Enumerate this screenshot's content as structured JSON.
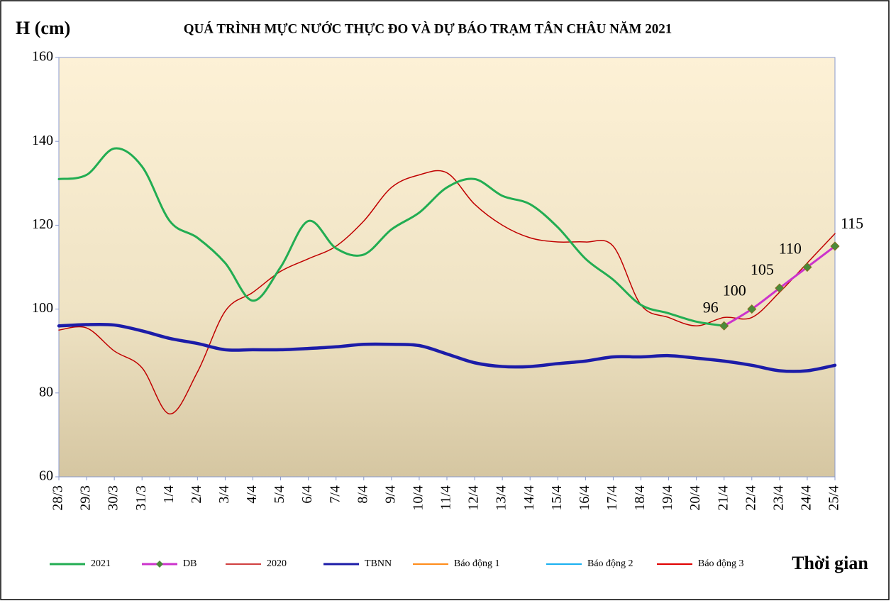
{
  "chart_data": {
    "type": "line",
    "title": "QUÁ TRÌNH MỰC NƯỚC THỰC ĐO VÀ DỰ BÁO TRẠM TÂN CHÂU NĂM 2021",
    "y_label": "H (cm)",
    "x_label": "Thời gian",
    "categories": [
      "28/3",
      "29/3",
      "30/3",
      "31/3",
      "1/4",
      "2/4",
      "3/4",
      "4/4",
      "5/4",
      "6/4",
      "7/4",
      "8/4",
      "9/4",
      "10/4",
      "11/4",
      "12/4",
      "13/4",
      "14/4",
      "15/4",
      "16/4",
      "17/4",
      "18/4",
      "19/4",
      "20/4",
      "21/4",
      "22/4",
      "23/4",
      "24/4",
      "25/4"
    ],
    "ylim": [
      60,
      160
    ],
    "yticks": [
      60,
      80,
      100,
      120,
      140,
      160
    ],
    "legend": "bottom",
    "series": [
      {
        "name": "2021",
        "color": "#22ad52",
        "width": 3,
        "values": [
          131,
          132,
          138.3,
          134,
          121,
          117,
          111,
          102,
          110,
          121,
          114.5,
          113,
          119,
          123,
          129,
          131,
          127,
          125,
          119.5,
          112,
          107,
          101,
          99,
          97,
          96,
          null,
          null,
          null,
          null
        ]
      },
      {
        "name": "DB",
        "color": "#cc33cc",
        "width": 3,
        "marker": "diamond",
        "marker_color": "#4a8a3a",
        "values": [
          null,
          null,
          null,
          null,
          null,
          null,
          null,
          null,
          null,
          null,
          null,
          null,
          null,
          null,
          null,
          null,
          null,
          null,
          null,
          null,
          null,
          null,
          null,
          null,
          96,
          100,
          105,
          110,
          115
        ],
        "value_labels": [
          null,
          null,
          null,
          null,
          null,
          null,
          null,
          null,
          null,
          null,
          null,
          null,
          null,
          null,
          null,
          null,
          null,
          null,
          null,
          null,
          null,
          null,
          null,
          null,
          "96",
          "100",
          "105",
          "110",
          "115"
        ]
      },
      {
        "name": "2020",
        "color": "#c00000",
        "width": 1.5,
        "values": [
          95,
          95.5,
          90,
          86,
          75,
          85,
          99.5,
          104,
          109,
          112,
          115,
          121,
          129,
          132,
          132.5,
          125,
          120,
          117,
          116,
          116,
          115,
          101,
          98,
          96,
          98,
          98,
          104,
          111,
          118
        ]
      },
      {
        "name": "TBNN",
        "color": "#1c1ca8",
        "width": 4.5,
        "values": [
          96,
          96.3,
          96.2,
          94.8,
          93,
          91.8,
          90.3,
          90.3,
          90.3,
          90.6,
          91,
          91.6,
          91.6,
          91.3,
          89.3,
          87.2,
          86.3,
          86.3,
          87,
          87.6,
          88.6,
          88.6,
          88.9,
          88.3,
          87.6,
          86.6,
          85.3,
          85.3,
          86.6
        ]
      },
      {
        "name": "Báo động 1",
        "color": "#ff8c1a",
        "width": 2,
        "values": [
          null,
          null,
          null,
          null,
          null,
          null,
          null,
          null,
          null,
          null,
          null,
          null,
          null,
          null,
          null,
          null,
          null,
          null,
          null,
          null,
          null,
          null,
          null,
          null,
          null,
          null,
          null,
          null,
          null
        ]
      },
      {
        "name": "Báo động 2",
        "color": "#1ab0f0",
        "width": 2,
        "values": [
          null,
          null,
          null,
          null,
          null,
          null,
          null,
          null,
          null,
          null,
          null,
          null,
          null,
          null,
          null,
          null,
          null,
          null,
          null,
          null,
          null,
          null,
          null,
          null,
          null,
          null,
          null,
          null,
          null
        ]
      },
      {
        "name": "Báo động 3",
        "color": "#e00000",
        "width": 2,
        "values": [
          null,
          null,
          null,
          null,
          null,
          null,
          null,
          null,
          null,
          null,
          null,
          null,
          null,
          null,
          null,
          null,
          null,
          null,
          null,
          null,
          null,
          null,
          null,
          null,
          null,
          null,
          null,
          null,
          null
        ]
      }
    ]
  }
}
